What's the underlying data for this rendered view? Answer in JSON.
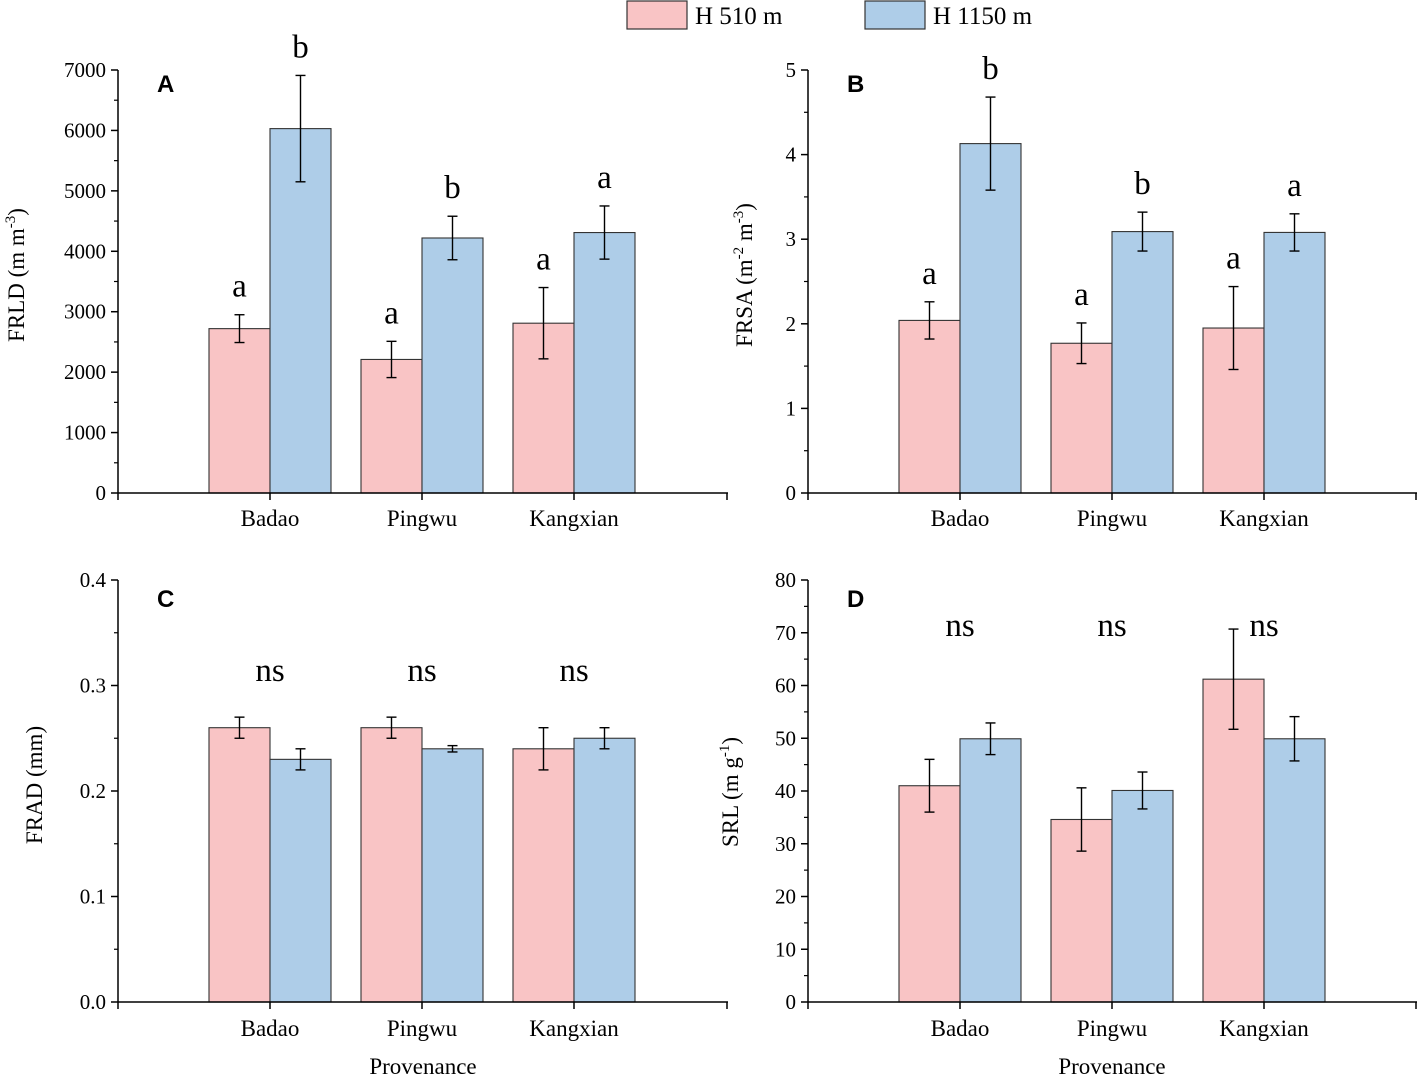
{
  "legend": {
    "items": [
      {
        "label": "H 510 m",
        "color": "#f9c4c5"
      },
      {
        "label": "H 1150 m",
        "color": "#aecde8"
      }
    ]
  },
  "colors": {
    "axis": "#000000",
    "bar_edge": "#333333"
  },
  "chart_data": [
    {
      "panel": "A",
      "type": "bar",
      "ylabel": "FRLD (m m",
      "ylabel_sup": "-3",
      "ylabel_end": ")",
      "xlabel": "",
      "categories": [
        "Badao",
        "Pingwu",
        "Kangxian"
      ],
      "ylim": [
        0,
        7000
      ],
      "yticks": [
        "0",
        "1000",
        "2000",
        "3000",
        "4000",
        "5000",
        "6000",
        "7000"
      ],
      "series": [
        {
          "name": "H 510 m",
          "values": [
            2720,
            2210,
            2810
          ],
          "errors": [
            230,
            300,
            590
          ],
          "labels": [
            "a",
            "a",
            "a"
          ]
        },
        {
          "name": "H 1150 m",
          "values": [
            6030,
            4220,
            4310
          ],
          "errors": [
            880,
            360,
            440
          ],
          "labels": [
            "b",
            "b",
            "a"
          ]
        }
      ],
      "group_labels": []
    },
    {
      "panel": "B",
      "type": "bar",
      "ylabel": "FRSA (m",
      "ylabel_sup": "-2",
      "ylabel_mid": " m",
      "ylabel_sup2": "-3",
      "ylabel_end": ")",
      "xlabel": "",
      "categories": [
        "Badao",
        "Pingwu",
        "Kangxian"
      ],
      "ylim": [
        0,
        5
      ],
      "yticks": [
        "0",
        "1",
        "2",
        "3",
        "4",
        "5"
      ],
      "series": [
        {
          "name": "H 510 m",
          "values": [
            2.04,
            1.77,
            1.95
          ],
          "errors": [
            0.22,
            0.24,
            0.49
          ],
          "labels": [
            "a",
            "a",
            "a"
          ]
        },
        {
          "name": "H 1150 m",
          "values": [
            4.13,
            3.09,
            3.08
          ],
          "errors": [
            0.55,
            0.23,
            0.22
          ],
          "labels": [
            "b",
            "b",
            "a"
          ]
        }
      ],
      "group_labels": []
    },
    {
      "panel": "C",
      "type": "bar",
      "ylabel": "FRAD (mm)",
      "xlabel": "Provenance",
      "categories": [
        "Badao",
        "Pingwu",
        "Kangxian"
      ],
      "ylim": [
        0,
        0.4
      ],
      "yticks": [
        "0.0",
        "0.1",
        "0.2",
        "0.3",
        "0.4"
      ],
      "series": [
        {
          "name": "H 510 m",
          "values": [
            0.26,
            0.26,
            0.24
          ],
          "errors": [
            0.01,
            0.01,
            0.02
          ],
          "labels": []
        },
        {
          "name": "H 1150 m",
          "values": [
            0.23,
            0.24,
            0.25
          ],
          "errors": [
            0.01,
            0.003,
            0.01
          ],
          "labels": []
        }
      ],
      "group_labels": [
        "ns",
        "ns",
        "ns"
      ]
    },
    {
      "panel": "D",
      "type": "bar",
      "ylabel": "SRL (m g",
      "ylabel_sup": "-1",
      "ylabel_end": ")",
      "xlabel": "Provenance",
      "categories": [
        "Badao",
        "Pingwu",
        "Kangxian"
      ],
      "ylim": [
        0,
        80
      ],
      "yticks": [
        "0",
        "10",
        "20",
        "30",
        "40",
        "50",
        "60",
        "70",
        "80"
      ],
      "series": [
        {
          "name": "H 510 m",
          "values": [
            41,
            34.6,
            61.2
          ],
          "errors": [
            5,
            6,
            9.5
          ],
          "labels": []
        },
        {
          "name": "H 1150 m",
          "values": [
            49.9,
            40.1,
            49.9
          ],
          "errors": [
            3,
            3.5,
            4.2
          ],
          "labels": []
        }
      ],
      "group_labels": [
        "ns",
        "ns",
        "ns"
      ]
    }
  ]
}
